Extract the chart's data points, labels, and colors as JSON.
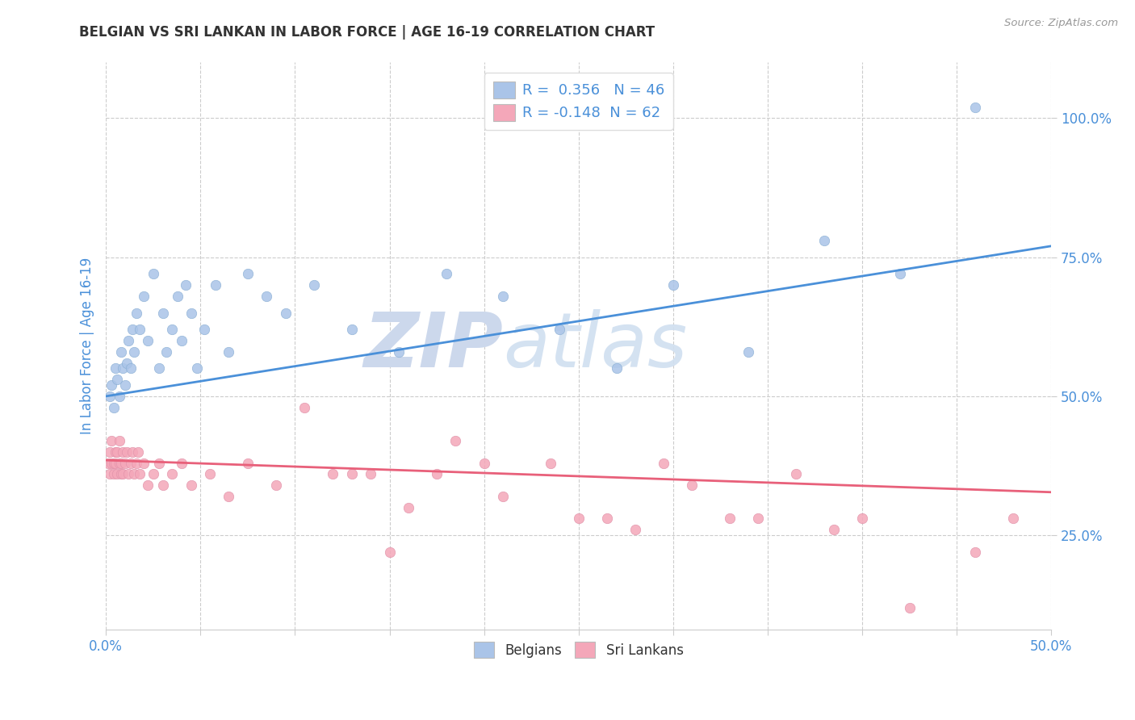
{
  "title": "BELGIAN VS SRI LANKAN IN LABOR FORCE | AGE 16-19 CORRELATION CHART",
  "source_text": "Source: ZipAtlas.com",
  "ylabel": "In Labor Force | Age 16-19",
  "xlim": [
    0.0,
    0.5
  ],
  "ylim": [
    0.08,
    1.1
  ],
  "xticks": [
    0.0,
    0.05,
    0.1,
    0.15,
    0.2,
    0.25,
    0.3,
    0.35,
    0.4,
    0.45,
    0.5
  ],
  "xticklabels": [
    "0.0%",
    "",
    "",
    "",
    "",
    "",
    "",
    "",
    "",
    "",
    "50.0%"
  ],
  "yticks": [
    0.25,
    0.5,
    0.75,
    1.0
  ],
  "yticklabels": [
    "25.0%",
    "50.0%",
    "75.0%",
    "100.0%"
  ],
  "belgian_color": "#aac4e8",
  "srilanka_color": "#f4a7b9",
  "belgian_line_color": "#4a90d9",
  "srilanka_line_color": "#e8607a",
  "watermark_color": "#ccd8ec",
  "watermark_text": "ZIPatlas",
  "background_color": "#ffffff",
  "grid_color": "#cccccc",
  "tick_label_color": "#4a90d9",
  "title_color": "#333333",
  "axis_label_color": "#4a90d9",
  "legend1_label1": "R =  0.356   N = 46",
  "legend1_label2": "R = -0.148  N = 62",
  "legend2_label1": "Belgians",
  "legend2_label2": "Sri Lankans",
  "belgian_scatter_x": [
    0.002,
    0.003,
    0.004,
    0.005,
    0.006,
    0.007,
    0.008,
    0.009,
    0.01,
    0.011,
    0.012,
    0.013,
    0.014,
    0.015,
    0.016,
    0.018,
    0.02,
    0.022,
    0.025,
    0.028,
    0.03,
    0.032,
    0.035,
    0.038,
    0.04,
    0.042,
    0.045,
    0.048,
    0.052,
    0.058,
    0.065,
    0.075,
    0.085,
    0.095,
    0.11,
    0.13,
    0.155,
    0.18,
    0.21,
    0.24,
    0.27,
    0.3,
    0.34,
    0.38,
    0.42,
    0.46
  ],
  "belgian_scatter_y": [
    0.5,
    0.52,
    0.48,
    0.55,
    0.53,
    0.5,
    0.58,
    0.55,
    0.52,
    0.56,
    0.6,
    0.55,
    0.62,
    0.58,
    0.65,
    0.62,
    0.68,
    0.6,
    0.72,
    0.55,
    0.65,
    0.58,
    0.62,
    0.68,
    0.6,
    0.7,
    0.65,
    0.55,
    0.62,
    0.7,
    0.58,
    0.72,
    0.68,
    0.65,
    0.7,
    0.62,
    0.58,
    0.72,
    0.68,
    0.62,
    0.55,
    0.7,
    0.58,
    0.78,
    0.72,
    1.02
  ],
  "srilanka_scatter_x": [
    0.001,
    0.002,
    0.002,
    0.003,
    0.003,
    0.004,
    0.004,
    0.005,
    0.005,
    0.006,
    0.006,
    0.007,
    0.007,
    0.008,
    0.008,
    0.009,
    0.009,
    0.01,
    0.011,
    0.012,
    0.013,
    0.014,
    0.015,
    0.016,
    0.017,
    0.018,
    0.02,
    0.022,
    0.025,
    0.028,
    0.03,
    0.035,
    0.04,
    0.045,
    0.055,
    0.065,
    0.075,
    0.09,
    0.105,
    0.12,
    0.14,
    0.16,
    0.185,
    0.21,
    0.235,
    0.265,
    0.295,
    0.33,
    0.365,
    0.4,
    0.13,
    0.15,
    0.175,
    0.2,
    0.25,
    0.28,
    0.31,
    0.345,
    0.385,
    0.425,
    0.46,
    0.48
  ],
  "srilanka_scatter_y": [
    0.38,
    0.4,
    0.36,
    0.38,
    0.42,
    0.38,
    0.36,
    0.4,
    0.38,
    0.36,
    0.4,
    0.38,
    0.42,
    0.36,
    0.38,
    0.4,
    0.36,
    0.38,
    0.4,
    0.36,
    0.38,
    0.4,
    0.36,
    0.38,
    0.4,
    0.36,
    0.38,
    0.34,
    0.36,
    0.38,
    0.34,
    0.36,
    0.38,
    0.34,
    0.36,
    0.32,
    0.38,
    0.34,
    0.48,
    0.36,
    0.36,
    0.3,
    0.42,
    0.32,
    0.38,
    0.28,
    0.38,
    0.28,
    0.36,
    0.28,
    0.36,
    0.22,
    0.36,
    0.38,
    0.28,
    0.26,
    0.34,
    0.28,
    0.26,
    0.12,
    0.22,
    0.28
  ]
}
